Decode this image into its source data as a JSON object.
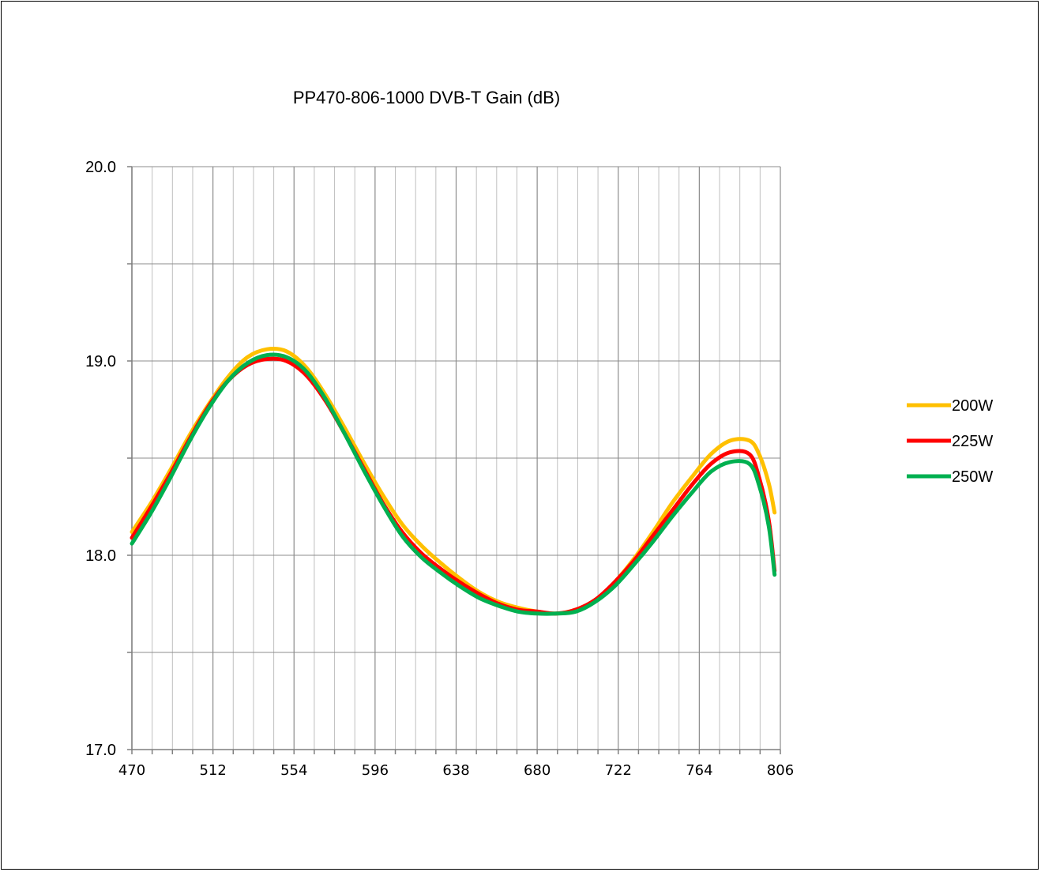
{
  "chart_data": {
    "type": "line",
    "title": "PP470-806-1000 DVB-T Gain (dB)",
    "xlabel": "",
    "ylabel": "",
    "xlim": [
      470,
      806
    ],
    "ylim": [
      17.0,
      20.0
    ],
    "x_ticks": [
      "470",
      "512",
      "554",
      "596",
      "638",
      "680",
      "722",
      "764",
      "806"
    ],
    "y_ticks": [
      "17.0",
      "18.0",
      "19.0",
      "20.0"
    ],
    "grid": true,
    "legend_position": "right",
    "x": [
      470,
      480,
      490,
      500,
      510,
      520,
      530,
      540,
      550,
      560,
      570,
      580,
      590,
      600,
      610,
      620,
      630,
      640,
      650,
      660,
      670,
      680,
      690,
      700,
      710,
      720,
      730,
      740,
      750,
      760,
      770,
      780,
      790,
      795,
      800,
      803
    ],
    "series": [
      {
        "name": "200W",
        "color": "#FFC000",
        "values": [
          18.12,
          18.27,
          18.44,
          18.62,
          18.78,
          18.92,
          19.02,
          19.06,
          19.05,
          18.97,
          18.83,
          18.66,
          18.48,
          18.31,
          18.16,
          18.05,
          17.96,
          17.88,
          17.81,
          17.76,
          17.73,
          17.71,
          17.7,
          17.72,
          17.77,
          17.86,
          17.98,
          18.12,
          18.27,
          18.4,
          18.52,
          18.59,
          18.59,
          18.52,
          18.37,
          18.22
        ]
      },
      {
        "name": "225W",
        "color": "#FF0000",
        "values": [
          18.09,
          18.25,
          18.42,
          18.6,
          18.77,
          18.9,
          18.98,
          19.01,
          19.0,
          18.93,
          18.8,
          18.63,
          18.45,
          18.27,
          18.12,
          18.01,
          17.93,
          17.86,
          17.8,
          17.75,
          17.72,
          17.71,
          17.7,
          17.72,
          17.77,
          17.86,
          17.97,
          18.1,
          18.23,
          18.36,
          18.47,
          18.53,
          18.52,
          18.4,
          18.18,
          17.92
        ]
      },
      {
        "name": "250W",
        "color": "#00B050",
        "values": [
          18.06,
          18.22,
          18.4,
          18.59,
          18.76,
          18.9,
          18.99,
          19.03,
          19.02,
          18.95,
          18.81,
          18.63,
          18.44,
          18.26,
          18.1,
          17.99,
          17.91,
          17.84,
          17.78,
          17.74,
          17.71,
          17.7,
          17.7,
          17.71,
          17.76,
          17.84,
          17.95,
          18.07,
          18.2,
          18.32,
          18.43,
          18.48,
          18.47,
          18.36,
          18.15,
          17.9
        ]
      }
    ]
  }
}
